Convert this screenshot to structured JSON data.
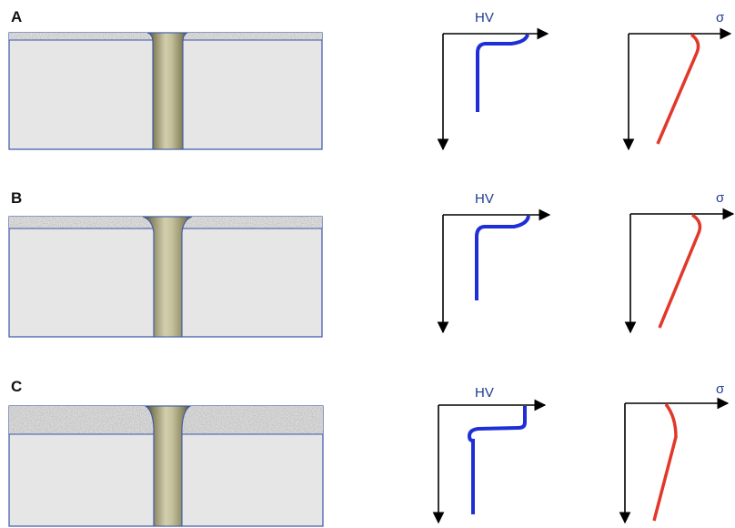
{
  "rows": [
    {
      "label": "A",
      "hv_label": "HV",
      "sigma_label": "σ",
      "coating": "thin"
    },
    {
      "label": "B",
      "hv_label": "HV",
      "sigma_label": "σ",
      "coating": "medium"
    },
    {
      "label": "C",
      "hv_label": "HV",
      "sigma_label": "σ",
      "coating": "thick"
    }
  ],
  "colors": {
    "substrate": "#e6e6e6",
    "outline": "#3a56a8",
    "hv_curve": "#1f2fd6",
    "sigma_curve": "#e2382a",
    "axis": "#000000",
    "axis_label": "#1f3a93"
  }
}
